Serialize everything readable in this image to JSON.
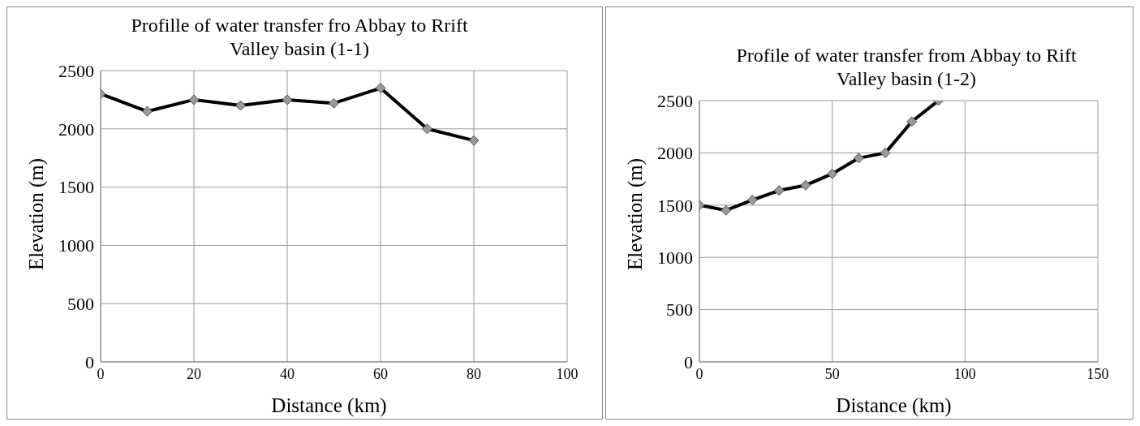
{
  "chart_data": [
    {
      "type": "line",
      "title": "Profille of water transfer fro Abbay  to Rrift Valley basin (1-1)",
      "xlabel": "Distance (km)",
      "ylabel": "Elevation  (m)",
      "x": [
        0,
        10,
        20,
        30,
        40,
        50,
        60,
        70,
        80
      ],
      "series": [
        {
          "color": "#000000",
          "values": [
            2300,
            2150,
            2250,
            2200,
            2250,
            2220,
            2350,
            2000,
            1900
          ]
        }
      ],
      "xlim": [
        0,
        100
      ],
      "xticks": [
        0,
        20,
        40,
        60,
        80,
        100
      ],
      "ylim": [
        0,
        2500
      ],
      "yticks": [
        0,
        500,
        1000,
        1500,
        2000,
        2500
      ],
      "grid": true,
      "legend": false,
      "marker": "diamond",
      "line_style": "solid"
    },
    {
      "type": "line",
      "title": "Profile of water transfer from Abbay  to Rift Valley basin (1-2)",
      "xlabel": "Distance (km)",
      "ylabel": "Elevation (m)",
      "x": [
        0,
        10,
        20,
        30,
        40,
        50,
        60,
        70,
        80,
        90
      ],
      "series": [
        {
          "color": "#000000",
          "values": [
            1500,
            1450,
            1550,
            1640,
            1690,
            1800,
            1950,
            2000,
            2300,
            2500
          ]
        }
      ],
      "xlim": [
        0,
        150
      ],
      "xticks": [
        0,
        50,
        100,
        150
      ],
      "ylim": [
        0,
        2500
      ],
      "yticks": [
        0,
        500,
        1000,
        1500,
        2000,
        2500
      ],
      "grid": true,
      "legend": false,
      "marker": "diamond",
      "line_style": "solid"
    }
  ]
}
